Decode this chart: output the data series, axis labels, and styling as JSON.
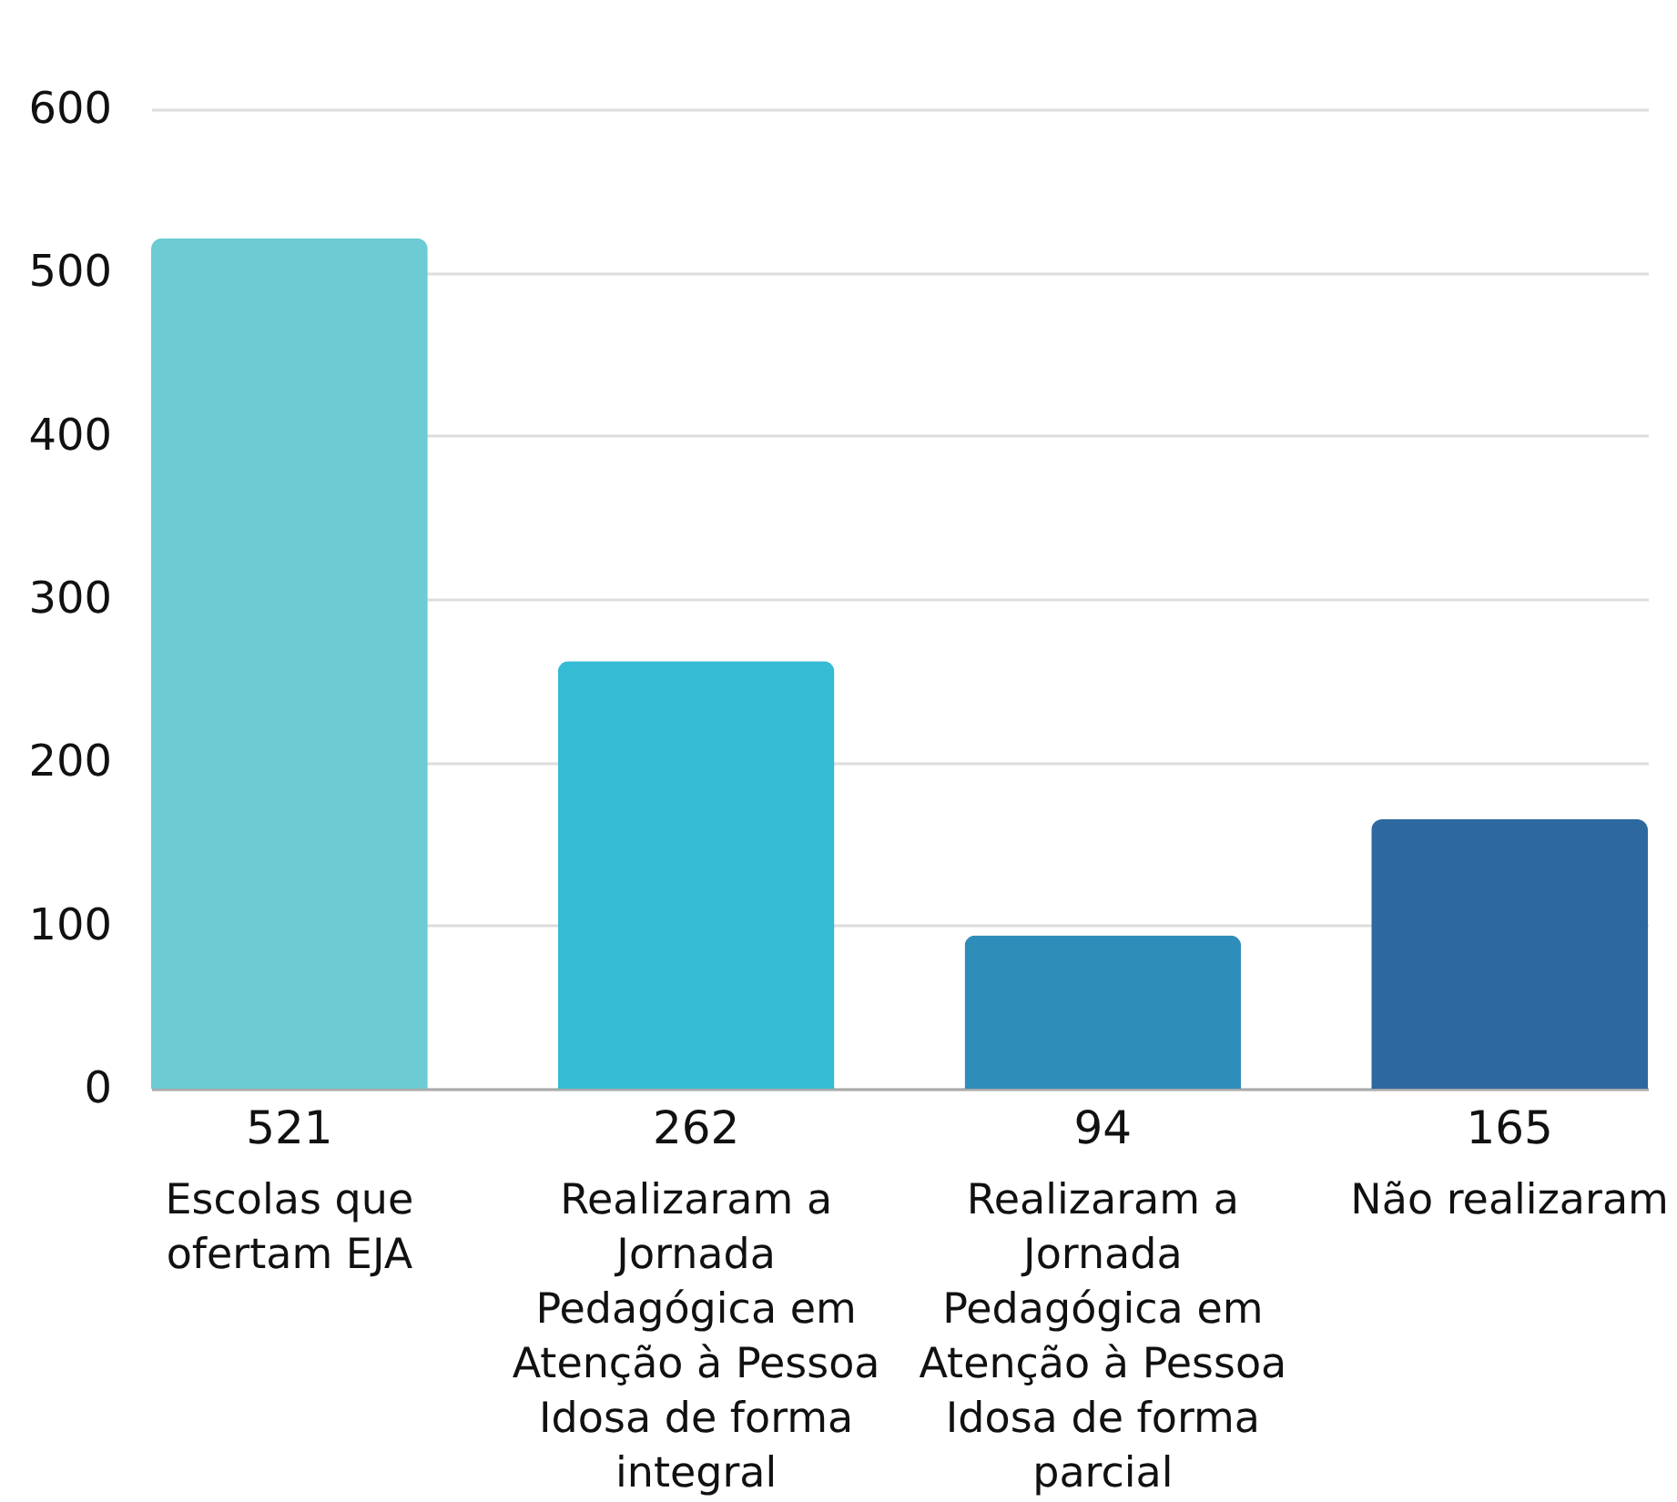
{
  "chart_data": {
    "type": "bar",
    "categories": [
      "Escolas que ofertam EJA",
      "Realizaram a Jornada Pedagógica em Atenção à Pessoa Idosa de forma integral",
      "Realizaram a Jornada Pedagógica em Atenção à Pessoa Idosa de forma parcial",
      "Não realizaram"
    ],
    "values": [
      521,
      262,
      94,
      165
    ],
    "colors": [
      "#6ccbd3",
      "#35bbd4",
      "#2f8db9",
      "#2d699e"
    ],
    "ylim": [
      0,
      600
    ],
    "yticks": [
      0,
      100,
      200,
      300,
      400,
      500,
      600
    ],
    "grid": "y",
    "data_labels": true
  }
}
